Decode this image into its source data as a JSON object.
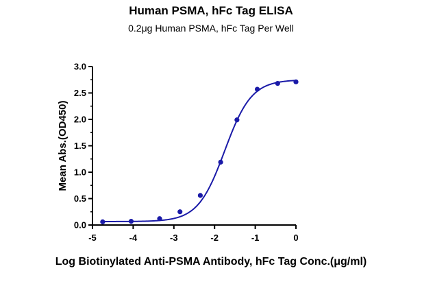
{
  "chart_data": {
    "type": "scatter",
    "title": "Human PSMA, hFc Tag ELISA",
    "subtitle": "0.2μg Human PSMA, hFc Tag Per Well",
    "xlabel": "Log Biotinylated Anti-PSMA Antibody, hFc Tag Conc.(μg/ml)",
    "ylabel": "Mean Abs.(OD450)",
    "xlim": [
      -5,
      0
    ],
    "ylim": [
      0,
      3.0
    ],
    "x_ticks": [
      "-5",
      "-4",
      "-3",
      "-2",
      "-1",
      "0"
    ],
    "y_ticks": [
      "0.0",
      "0.5",
      "1.0",
      "1.5",
      "2.0",
      "2.5",
      "3.0"
    ],
    "grid": false,
    "legend": "none",
    "series": [
      {
        "marker": "circle",
        "fit": "four-parameter logistic curve",
        "points": [
          {
            "x": -4.75,
            "y": 0.06
          },
          {
            "x": -4.05,
            "y": 0.07
          },
          {
            "x": -3.35,
            "y": 0.12
          },
          {
            "x": -2.85,
            "y": 0.25
          },
          {
            "x": -2.35,
            "y": 0.56
          },
          {
            "x": -1.85,
            "y": 1.19
          },
          {
            "x": -1.45,
            "y": 1.99
          },
          {
            "x": -0.95,
            "y": 2.57
          },
          {
            "x": -0.45,
            "y": 2.68
          },
          {
            "x": 0.0,
            "y": 2.71
          }
        ]
      }
    ],
    "colors": {
      "series": "#1a1aa8",
      "axis": "#000000"
    }
  }
}
